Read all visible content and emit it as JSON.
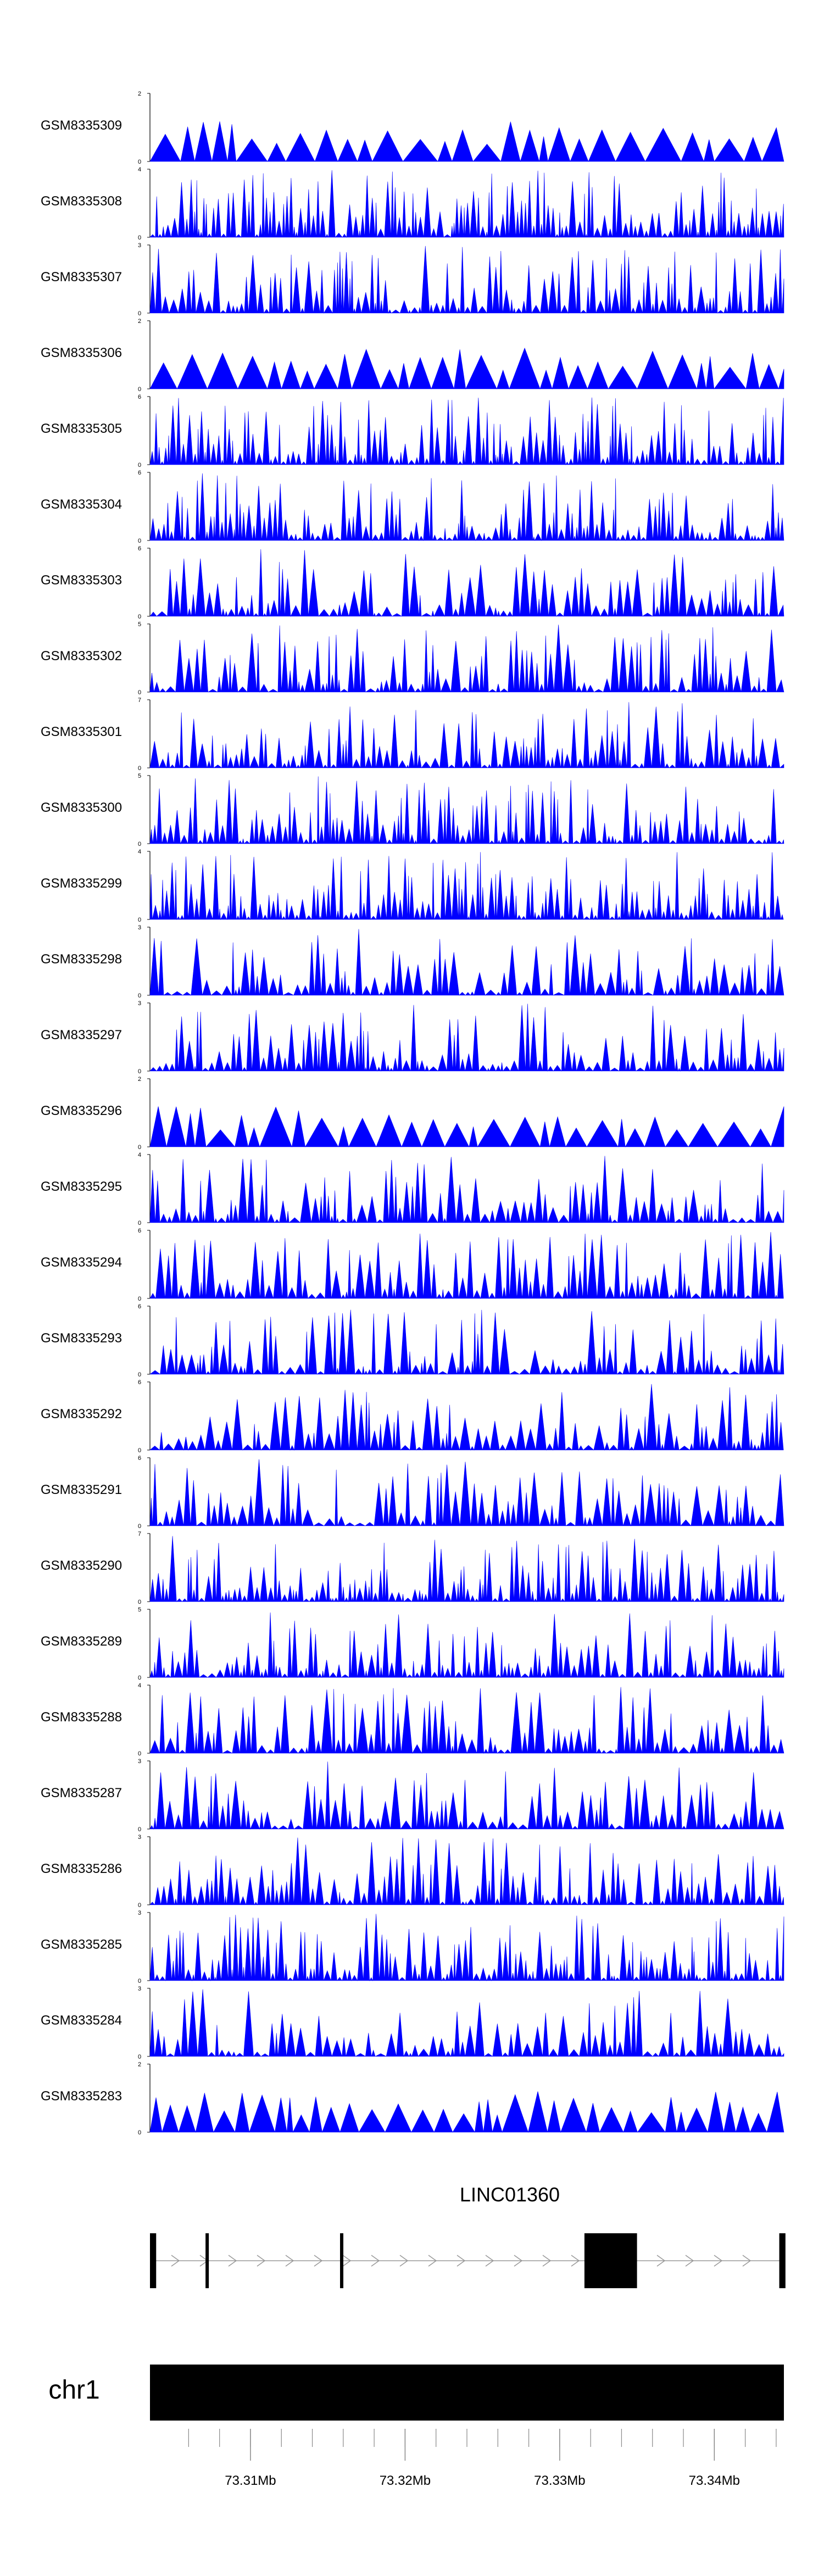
{
  "chart_data": {
    "type": "area",
    "series_color": "#0000ff",
    "axis_color": "#000000",
    "tracks": [
      {
        "name": "GSM8335309",
        "ymax": 2
      },
      {
        "name": "GSM8335308",
        "ymax": 4
      },
      {
        "name": "GSM8335307",
        "ymax": 3
      },
      {
        "name": "GSM8335306",
        "ymax": 2
      },
      {
        "name": "GSM8335305",
        "ymax": 6
      },
      {
        "name": "GSM8335304",
        "ymax": 6
      },
      {
        "name": "GSM8335303",
        "ymax": 6
      },
      {
        "name": "GSM8335302",
        "ymax": 5
      },
      {
        "name": "GSM8335301",
        "ymax": 7
      },
      {
        "name": "GSM8335300",
        "ymax": 5
      },
      {
        "name": "GSM8335299",
        "ymax": 4
      },
      {
        "name": "GSM8335298",
        "ymax": 3
      },
      {
        "name": "GSM8335297",
        "ymax": 3
      },
      {
        "name": "GSM8335296",
        "ymax": 2
      },
      {
        "name": "GSM8335295",
        "ymax": 4
      },
      {
        "name": "GSM8335294",
        "ymax": 6
      },
      {
        "name": "GSM8335293",
        "ymax": 6
      },
      {
        "name": "GSM8335292",
        "ymax": 6
      },
      {
        "name": "GSM8335291",
        "ymax": 6
      },
      {
        "name": "GSM8335290",
        "ymax": 7
      },
      {
        "name": "GSM8335289",
        "ymax": 5
      },
      {
        "name": "GSM8335288",
        "ymax": 4
      },
      {
        "name": "GSM8335287",
        "ymax": 3
      },
      {
        "name": "GSM8335286",
        "ymax": 3
      },
      {
        "name": "GSM8335285",
        "ymax": 3
      },
      {
        "name": "GSM8335284",
        "ymax": 3
      },
      {
        "name": "GSM8335283",
        "ymax": 2
      }
    ],
    "gene": {
      "name": "LINC01360",
      "strand": "+",
      "exons": [
        [
          73.3035,
          73.3039
        ],
        [
          73.3072,
          73.3074
        ],
        [
          73.3159,
          73.3161
        ],
        [
          73.3316,
          73.335
        ],
        [
          73.3442,
          73.3446
        ]
      ]
    },
    "chromosome": "chr1",
    "region_mb": [
      73.3035,
      73.3445
    ],
    "ticks_mb": [
      73.31,
      73.32,
      73.33,
      73.34
    ],
    "tick_labels": [
      "73.31Mb",
      "73.32Mb",
      "73.33Mb",
      "73.34Mb"
    ]
  }
}
